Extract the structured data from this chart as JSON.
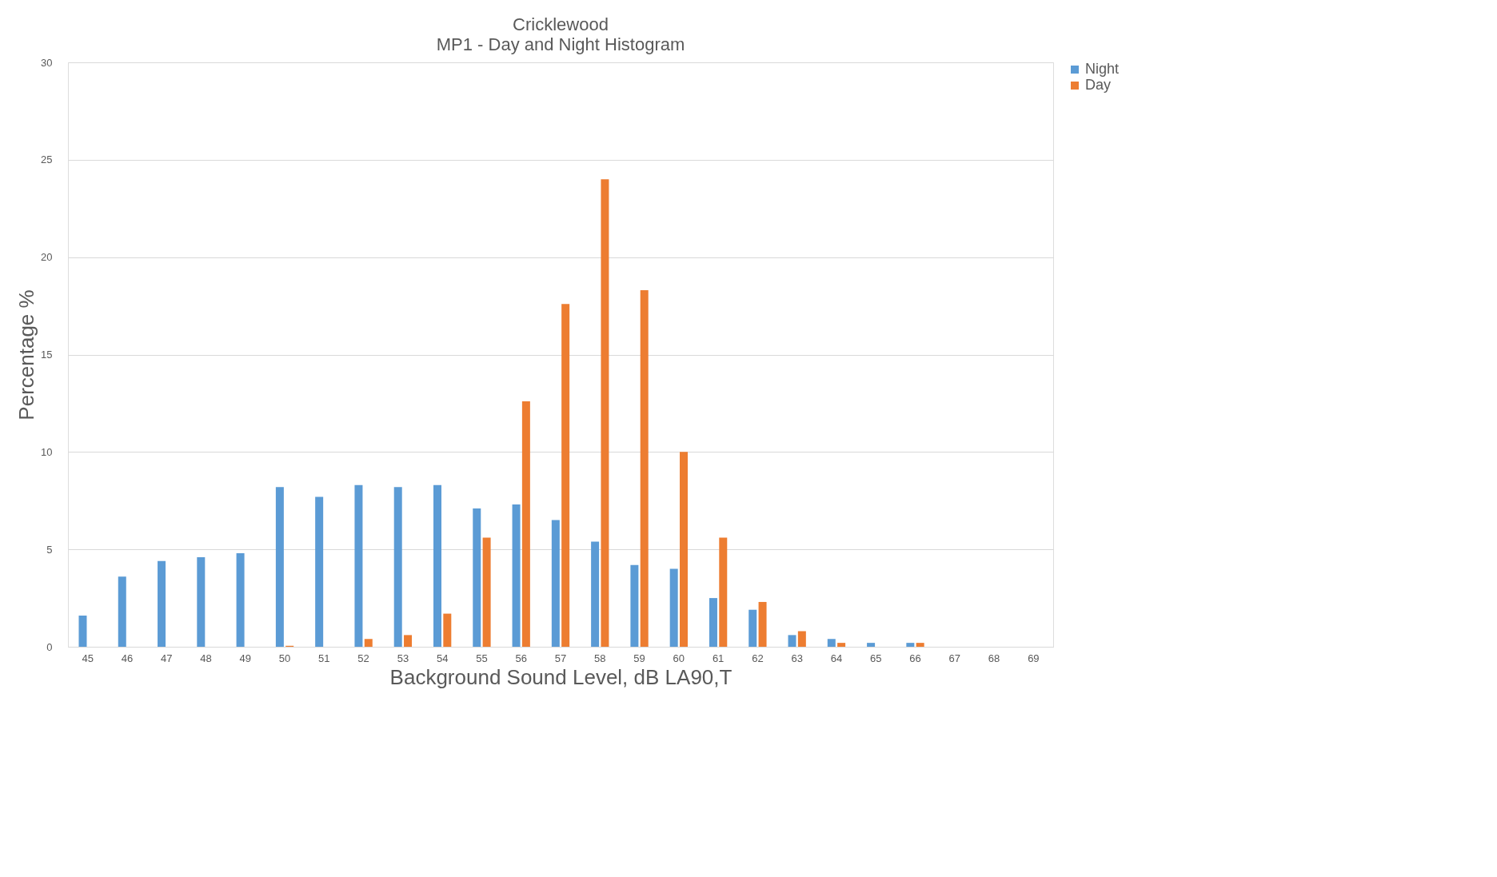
{
  "chart_data": {
    "type": "bar",
    "title": "Cricklewood",
    "subtitle": "MP1 - Day and Night Histogram",
    "xlabel": "Background Sound Level, dB LA90,T",
    "ylabel": "Percentage %",
    "categories": [
      "45",
      "46",
      "47",
      "48",
      "49",
      "50",
      "51",
      "52",
      "53",
      "54",
      "55",
      "56",
      "57",
      "58",
      "59",
      "60",
      "61",
      "62",
      "63",
      "64",
      "65",
      "66",
      "67",
      "68",
      "69"
    ],
    "series": [
      {
        "name": "Night",
        "color": "#5b9bd5",
        "values": [
          1.6,
          3.6,
          4.4,
          4.6,
          4.8,
          8.2,
          7.7,
          8.3,
          8.2,
          8.3,
          7.1,
          7.3,
          6.5,
          5.4,
          4.2,
          4.0,
          2.5,
          1.9,
          0.6,
          0.4,
          0.2,
          0.2,
          0,
          0,
          0
        ]
      },
      {
        "name": "Day",
        "color": "#ed7d31",
        "values": [
          0,
          0,
          0,
          0,
          0,
          0.05,
          0,
          0.4,
          0.6,
          1.7,
          5.6,
          12.6,
          17.6,
          24.0,
          18.3,
          10.0,
          5.6,
          2.3,
          0.8,
          0.2,
          0,
          0.2,
          0,
          0,
          0
        ]
      }
    ],
    "ylim": [
      0,
      30
    ],
    "yticks": [
      0,
      5,
      10,
      15,
      20,
      25,
      30
    ],
    "grid": "y",
    "legend": "right"
  }
}
